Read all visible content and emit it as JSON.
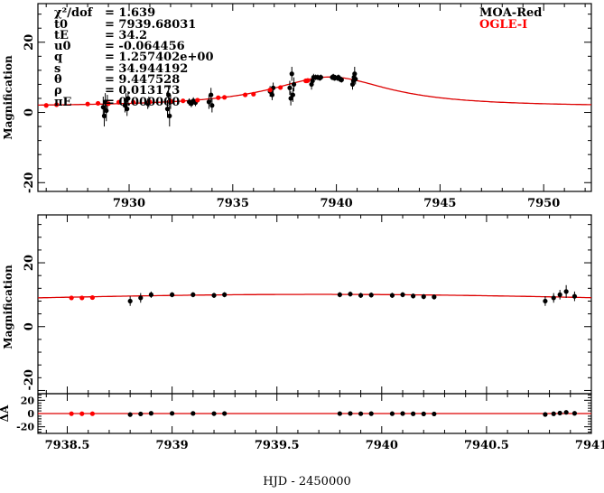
{
  "chart_data": [
    {
      "type": "scatter",
      "panel": "overview",
      "ylabel": "Magnification",
      "xlim": [
        7925.6,
        7952.3
      ],
      "ylim": [
        -22.5,
        31
      ],
      "xticks": [
        7930,
        7935,
        7940,
        7945,
        7950
      ],
      "xtick_labels": [
        "7930",
        "7935",
        "7940",
        "7945",
        "7950"
      ],
      "yticks": [
        -20,
        0,
        20
      ],
      "ytick_labels": [
        "-20",
        "0",
        "20"
      ],
      "legend": {
        "placement": "top-right",
        "entries": [
          {
            "name": "MOA-Red",
            "color": "#000000"
          },
          {
            "name": "OGLE-I",
            "color": "#ff0000"
          }
        ]
      },
      "fit_params": [
        {
          "label": "χ²/dof",
          "value": "= 1.639"
        },
        {
          "label": "t0",
          "value": "= 7939.68031"
        },
        {
          "label": "tE",
          "value": "= 34.2"
        },
        {
          "label": "u0",
          "value": "= -0.064456"
        },
        {
          "label": "q",
          "value": "= 1.257402e+00"
        },
        {
          "label": "s",
          "value": "= 34.944192"
        },
        {
          "label": "θ",
          "value": "= 9.447528"
        },
        {
          "label": "ρ",
          "value": "= 0.013173"
        },
        {
          "label": "πE",
          "value": "= 0.000000"
        }
      ]
    },
    {
      "type": "scatter",
      "panel": "zoom",
      "ylabel": "Magnification",
      "xlim": [
        7938.36,
        7941.0
      ],
      "ylim": [
        -21,
        35
      ],
      "xticks": [
        7938.5,
        7939,
        7939.5,
        7940,
        7940.5,
        7941
      ],
      "yticks": [
        -20,
        0,
        20
      ],
      "ytick_labels": [
        "-20",
        "0",
        "20"
      ]
    },
    {
      "type": "scatter",
      "panel": "residual",
      "ylabel": "ΔA",
      "xlabel": "HJD - 2450000",
      "xlim": [
        7938.36,
        7941.0
      ],
      "ylim": [
        -30,
        30
      ],
      "xticks": [
        7938.5,
        7939,
        7939.5,
        7940,
        7940.5,
        7941
      ],
      "xtick_labels": [
        "7938.5",
        "7939",
        "7939.5",
        "7940",
        "7940.5",
        "7941"
      ],
      "yticks": [
        -20,
        0,
        20
      ],
      "ytick_labels": [
        "-20",
        "0",
        "20"
      ]
    }
  ],
  "model": {
    "color": "#dd0000",
    "baseline": 1.6,
    "amp": 8.5,
    "t_peak": 7939.7,
    "width": 3.5
  },
  "series": [
    {
      "name": "MOA-Red",
      "color": "#000000",
      "points": [
        [
          7928.75,
          1.5,
          3
        ],
        [
          7928.8,
          -1,
          3
        ],
        [
          7928.85,
          3,
          2.5
        ],
        [
          7928.9,
          0.5,
          3
        ],
        [
          7928.95,
          2.5,
          2.5
        ],
        [
          7929.8,
          2,
          2
        ],
        [
          7929.85,
          3.5,
          2
        ],
        [
          7929.9,
          1,
          2
        ],
        [
          7929.95,
          4,
          2
        ],
        [
          7930.9,
          2.5,
          1.5
        ],
        [
          7930.95,
          3,
          1.5
        ],
        [
          7931.85,
          1,
          2.5
        ],
        [
          7931.9,
          5,
          2.5
        ],
        [
          7931.95,
          -1,
          3
        ],
        [
          7932.0,
          3,
          2
        ],
        [
          7932.9,
          3,
          1
        ],
        [
          7933.0,
          2.5,
          1
        ],
        [
          7933.1,
          3.3,
          1
        ],
        [
          7933.2,
          2.8,
          1
        ],
        [
          7933.85,
          3,
          2
        ],
        [
          7933.95,
          5,
          2
        ],
        [
          7934.0,
          2,
          2
        ],
        [
          7936.8,
          6,
          1.5
        ],
        [
          7936.9,
          5,
          1.5
        ],
        [
          7936.95,
          7,
          1.5
        ],
        [
          7937.75,
          7,
          2
        ],
        [
          7937.8,
          4,
          2
        ],
        [
          7937.85,
          11,
          2
        ],
        [
          7937.9,
          5,
          2
        ],
        [
          7937.95,
          8,
          2
        ],
        [
          7938.8,
          8,
          1.5
        ],
        [
          7938.85,
          9,
          1.5
        ],
        [
          7938.9,
          10,
          1
        ],
        [
          7939.0,
          10,
          0.8
        ],
        [
          7939.1,
          10,
          0.8
        ],
        [
          7939.2,
          9.8,
          0.8
        ],
        [
          7939.25,
          10,
          0.8
        ],
        [
          7939.8,
          10,
          0.8
        ],
        [
          7939.85,
          10.2,
          0.8
        ],
        [
          7939.9,
          9.8,
          0.8
        ],
        [
          7939.95,
          9.9,
          0.8
        ],
        [
          7940.05,
          9.8,
          0.8
        ],
        [
          7940.1,
          10,
          0.8
        ],
        [
          7940.15,
          9.6,
          0.8
        ],
        [
          7940.2,
          9.4,
          0.8
        ],
        [
          7940.25,
          9.3,
          0.8
        ],
        [
          7940.78,
          8,
          1.5
        ],
        [
          7940.82,
          9,
          1.5
        ],
        [
          7940.85,
          10,
          1.5
        ],
        [
          7940.88,
          11,
          2
        ],
        [
          7940.92,
          9.5,
          1.5
        ]
      ]
    },
    {
      "name": "OGLE-I",
      "color": "#ff0000",
      "points": [
        [
          7926.0,
          2.0,
          0.3
        ],
        [
          7926.5,
          2.2,
          0.3
        ],
        [
          7928.0,
          2.4,
          0.3
        ],
        [
          7928.5,
          2.6,
          0.3
        ],
        [
          7929.0,
          2.5,
          0.3
        ],
        [
          7929.5,
          2.9,
          0.3
        ],
        [
          7930.2,
          2.9,
          0.3
        ],
        [
          7931.0,
          3.0,
          0.3
        ],
        [
          7932.0,
          3.2,
          0.3
        ],
        [
          7932.6,
          3.3,
          0.3
        ],
        [
          7933.3,
          3.5,
          0.3
        ],
        [
          7934.3,
          4.2,
          0.3
        ],
        [
          7934.6,
          4.3,
          0.3
        ],
        [
          7935.6,
          5.0,
          0.3
        ],
        [
          7936.0,
          5.2,
          0.3
        ],
        [
          7936.8,
          6.4,
          0.3
        ],
        [
          7937.3,
          7.1,
          0.3
        ],
        [
          7938.52,
          9.0,
          0.3
        ],
        [
          7938.57,
          9.0,
          0.3
        ],
        [
          7938.62,
          9.1,
          0.3
        ]
      ]
    }
  ]
}
